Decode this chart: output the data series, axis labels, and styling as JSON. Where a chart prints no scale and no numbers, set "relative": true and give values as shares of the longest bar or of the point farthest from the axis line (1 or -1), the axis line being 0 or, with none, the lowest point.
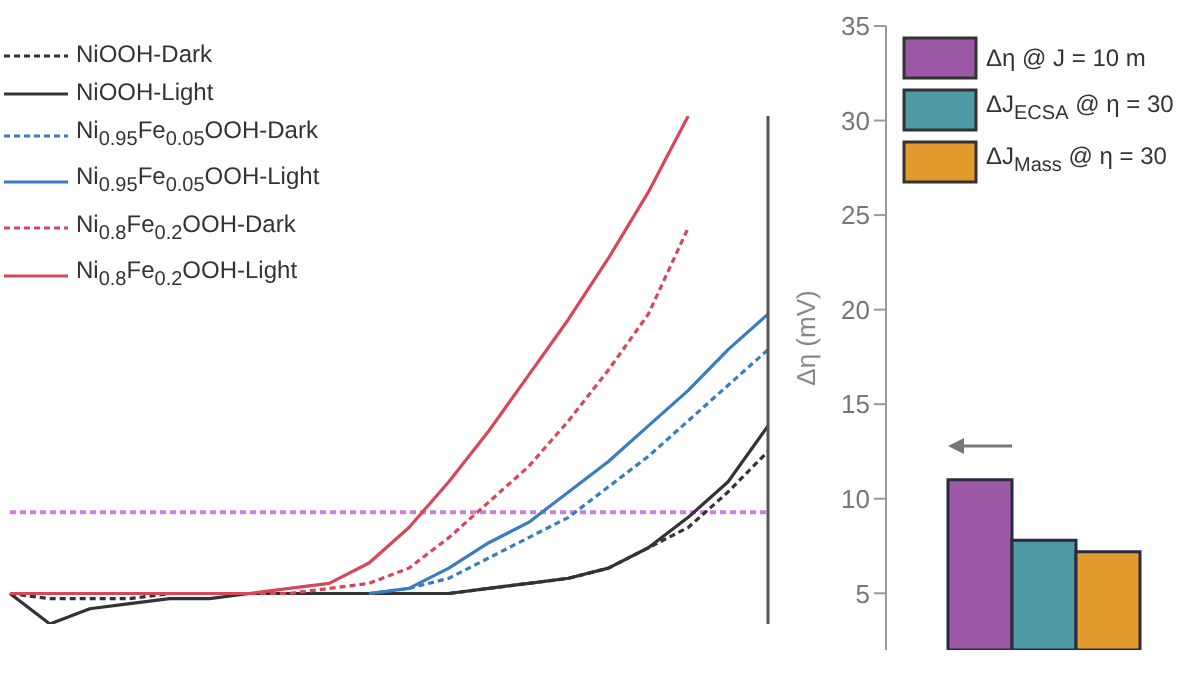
{
  "chart_data": [
    {
      "type": "line",
      "relative": true,
      "legend": "top left",
      "categories": [
        null,
        null,
        null,
        null,
        null,
        null,
        null,
        null,
        null,
        null,
        null,
        null,
        null,
        null,
        null,
        null,
        null,
        null,
        null,
        null
      ],
      "series": [
        {
          "name": "NiOOH-Dark",
          "color": "#333333",
          "line_style": "dashed",
          "values": [
            0.06,
            0.05,
            0.05,
            0.05,
            0.06,
            0.06,
            0.06,
            0.06,
            0.06,
            0.06,
            0.06,
            0.06,
            0.07,
            0.08,
            0.09,
            0.11,
            0.15,
            0.19,
            0.26,
            0.34
          ]
        },
        {
          "name": "NiOOH-Light",
          "color": "#333333",
          "line_style": "solid",
          "values": [
            0.06,
            0,
            0.03,
            0.04,
            0.05,
            0.05,
            0.06,
            0.06,
            0.06,
            0.06,
            0.06,
            0.06,
            0.07,
            0.08,
            0.09,
            0.11,
            0.15,
            0.21,
            0.28,
            0.39
          ]
        },
        {
          "name": "Ni$_{0.95}$Fe$_{0.05}$OOH-Dark",
          "color": "#3a7cc0",
          "line_style": "dashed",
          "values": [
            null,
            null,
            null,
            null,
            null,
            null,
            null,
            null,
            null,
            0.06,
            0.07,
            0.09,
            0.13,
            0.17,
            0.21,
            0.27,
            0.33,
            0.4,
            0.47,
            0.54
          ]
        },
        {
          "name": "Ni$_{0.95}$Fe$_{0.05}$OOH-Light",
          "color": "#3a7cc0",
          "line_style": "solid",
          "values": [
            null,
            null,
            null,
            null,
            null,
            null,
            null,
            null,
            null,
            0.06,
            0.07,
            0.11,
            0.16,
            0.2,
            0.26,
            0.32,
            0.39,
            0.46,
            0.54,
            0.61
          ]
        },
        {
          "name": "Ni$_{0.8}$Fe$_{0.2}$OOH-Dark",
          "color": "#d9455a",
          "line_style": "dashed",
          "values": [
            0.06,
            0.06,
            0.06,
            0.06,
            0.06,
            0.06,
            0.06,
            0.06,
            0.07,
            0.08,
            0.11,
            0.17,
            0.24,
            0.31,
            0.4,
            0.5,
            0.61,
            0.78,
            null,
            null
          ]
        },
        {
          "name": "Ni$_{0.8}$Fe$_{0.2}$OOH-Light",
          "color": "#d9455a",
          "line_style": "solid",
          "values": [
            0.06,
            0.06,
            0.06,
            0.06,
            0.06,
            0.06,
            0.06,
            0.07,
            0.08,
            0.12,
            0.19,
            0.28,
            0.38,
            0.49,
            0.6,
            0.72,
            0.85,
            1,
            null,
            null
          ]
        }
      ],
      "ref_lines": [
        {
          "axis": "y",
          "value": 0.22,
          "color": "#c77fe0",
          "line_style": "dashed"
        }
      ]
    },
    {
      "type": "bar",
      "ylabel": "Δη (mV)",
      "legend": "top left",
      "categories": [
        null
      ],
      "ylim": [
        2,
        35
      ],
      "yticks": [
        5,
        10,
        15,
        20,
        25,
        30,
        35
      ],
      "series": [
        {
          "name": "Δη @ J = 10 m",
          "color": "#9b59a6",
          "values": [
            11
          ]
        },
        {
          "name": "ΔJ$_{ECSA}$ @ η = 30",
          "color": "#4e9aa5",
          "values": [
            7.8
          ]
        },
        {
          "name": "ΔJ$_{Mass}$ @ η = 30",
          "color": "#e39a2c",
          "values": [
            7.2
          ]
        }
      ]
    }
  ]
}
